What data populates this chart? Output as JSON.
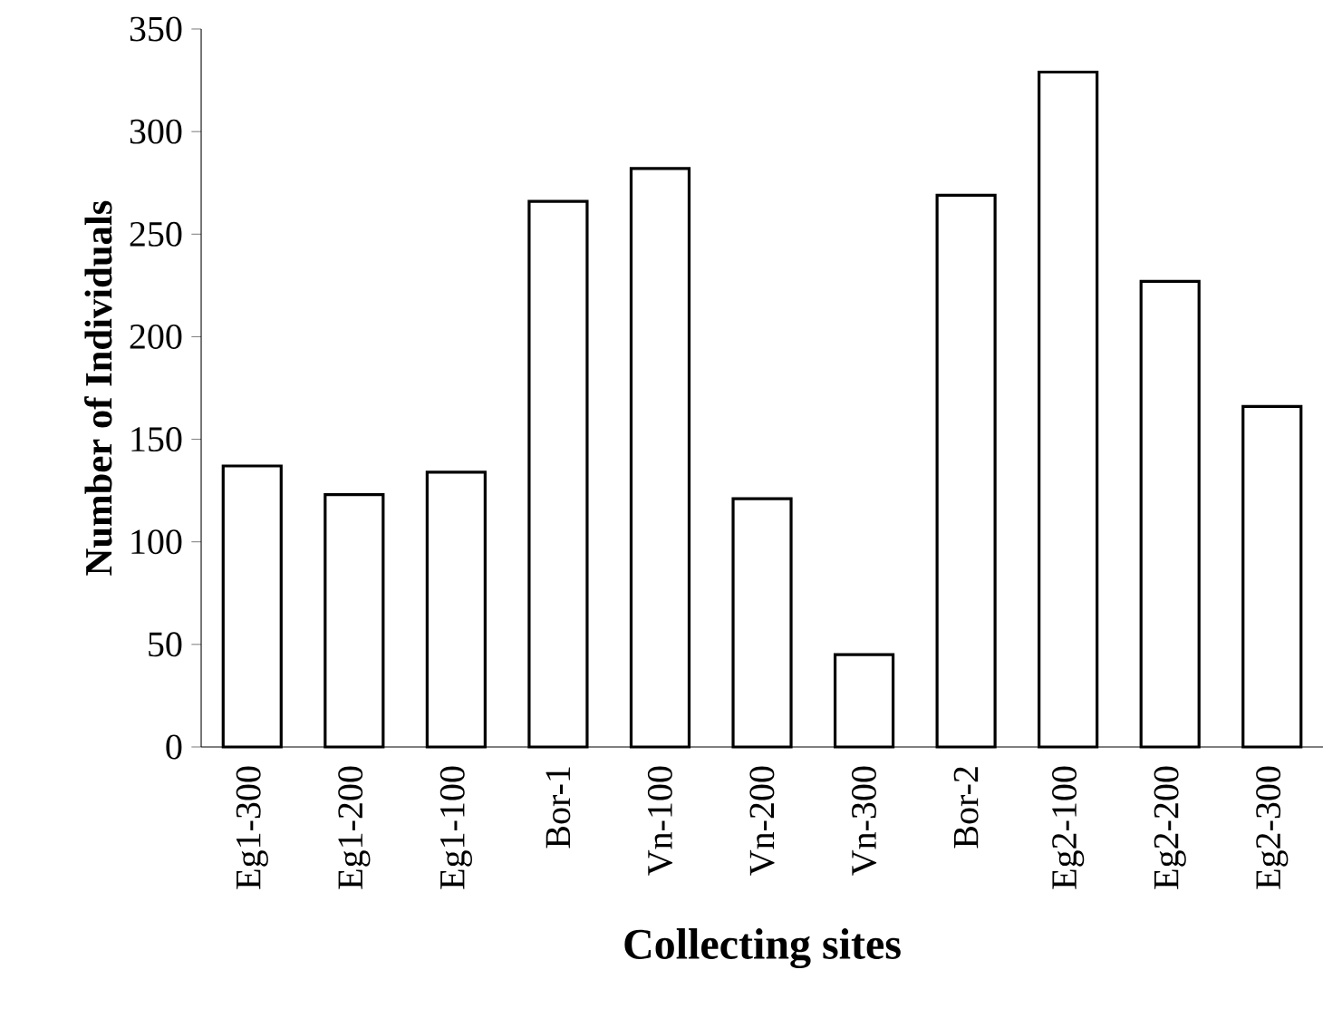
{
  "chart_data": {
    "type": "bar",
    "xlabel": "Collecting sites",
    "ylabel": "Number of Individuals",
    "categories": [
      "Eg1-300",
      "Eg1-200",
      "Eg1-100",
      "Bor-1",
      "Vn-100",
      "Vn-200",
      "Vn-300",
      "Bor-2",
      "Eg2-100",
      "Eg2-200",
      "Eg2-300"
    ],
    "values": [
      137,
      123,
      134,
      266,
      282,
      121,
      45,
      269,
      329,
      227,
      166
    ],
    "color": "#ffffff",
    "ylim": [
      0,
      350
    ],
    "yticks": [
      0,
      50,
      100,
      150,
      200,
      250,
      300,
      350
    ],
    "grid": false
  }
}
